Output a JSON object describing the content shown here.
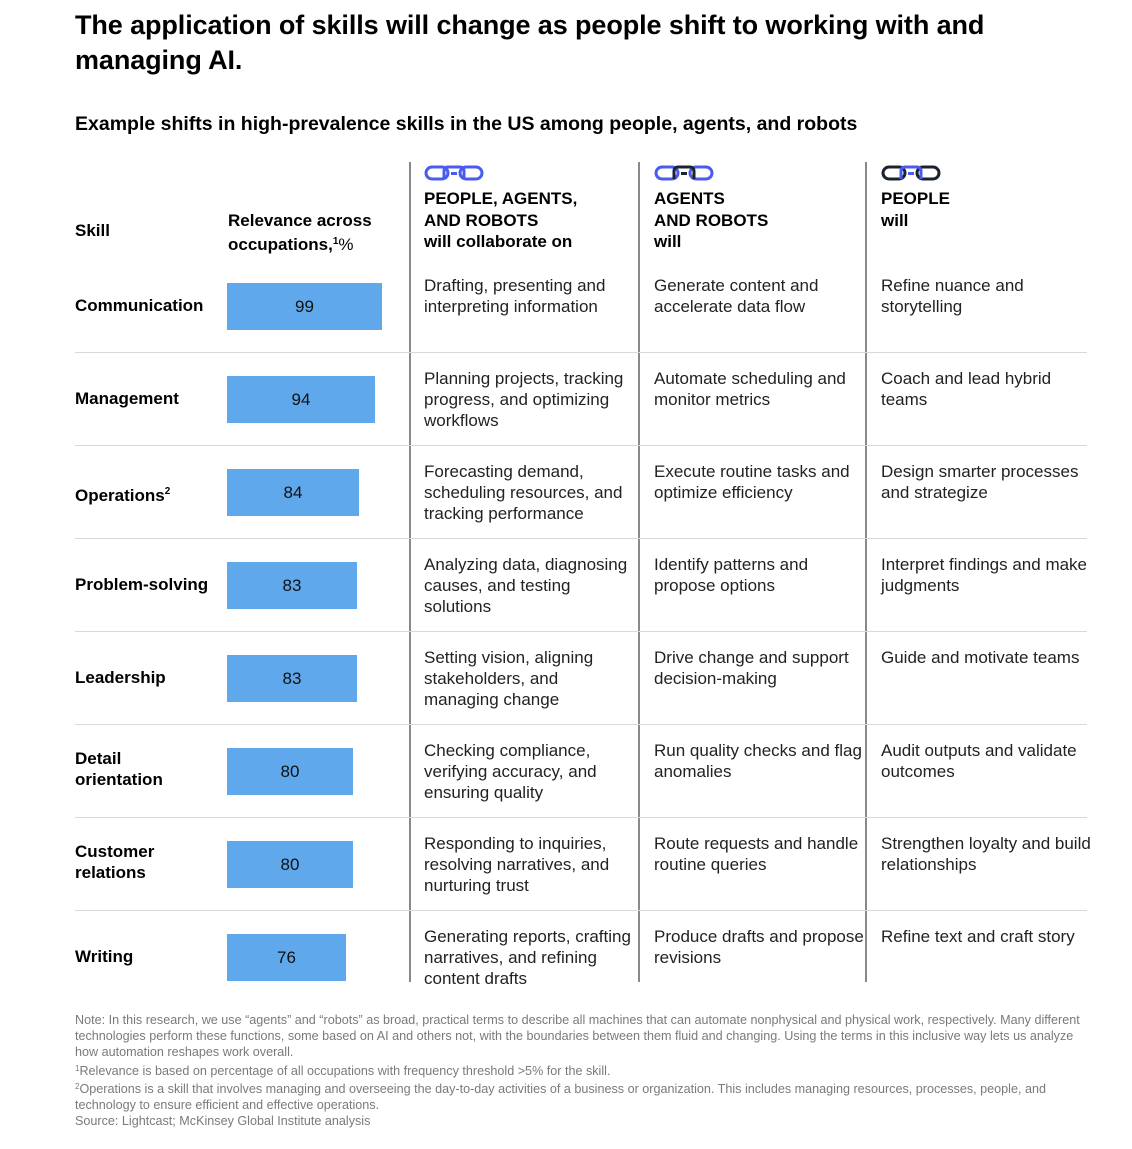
{
  "title": "The application of skills will change as people shift to working with and managing AI.",
  "subtitle": "Example shifts in high-prevalence skills in the US among people, agents, and robots",
  "headers": {
    "skill": "Skill",
    "relevance_line1": "Relevance across",
    "relevance_line2": "occupations,",
    "relevance_footnote": "1",
    "relevance_unit": "%",
    "columns": [
      {
        "icon": "chain-link-icon-all-blue",
        "caps_line1": "PEOPLE, AGENTS,",
        "caps_line2": "AND ROBOTS",
        "sub": "will collaborate on"
      },
      {
        "icon": "chain-link-icon-blue-dark-middle",
        "caps_line1": "AGENTS",
        "caps_line2": "AND ROBOTS",
        "sub": "will"
      },
      {
        "icon": "chain-link-icon-dark-blue-middle",
        "caps_line1": "PEOPLE",
        "caps_line2": "will",
        "sub": ""
      }
    ]
  },
  "colors": {
    "bar": "#5fa8ec",
    "icon_blue": "#4a5cf0",
    "icon_dark": "#1b2330"
  },
  "chart_data": {
    "type": "bar",
    "title": "Example shifts in high-prevalence skills in the US among people, agents, and robots",
    "xlabel": "Relevance across occupations, %",
    "ylabel": "Skill",
    "categories": [
      "Communication",
      "Management",
      "Operations",
      "Problem-solving",
      "Leadership",
      "Detail orientation",
      "Customer relations",
      "Writing"
    ],
    "values": [
      99,
      94,
      84,
      83,
      83,
      80,
      80,
      76
    ],
    "xlim": [
      0,
      100
    ],
    "orientation": "horizontal",
    "data_labels": true,
    "grid": false
  },
  "rows": [
    {
      "skill_line1": "Communication",
      "skill_line2": "",
      "footnote": "",
      "value": 99,
      "collab": "Drafting, presenting and interpreting information",
      "agents": "Generate content and accelerate data flow",
      "people": "Refine nuance and storytelling"
    },
    {
      "skill_line1": "Management",
      "skill_line2": "",
      "footnote": "",
      "value": 94,
      "collab": "Planning projects, tracking progress, and optimizing workflows",
      "agents": "Automate scheduling and monitor metrics",
      "people": "Coach and lead hybrid teams"
    },
    {
      "skill_line1": "Operations",
      "skill_line2": "",
      "footnote": "2",
      "value": 84,
      "collab": "Forecasting demand, scheduling resources, and tracking performance",
      "agents": "Execute routine tasks and optimize efficiency",
      "people": "Design smarter processes and strategize"
    },
    {
      "skill_line1": "Problem-solving",
      "skill_line2": "",
      "footnote": "",
      "value": 83,
      "collab": "Analyzing data, diagnosing causes, and testing solutions",
      "agents": "Identify patterns and propose options",
      "people": "Interpret findings and make judgments"
    },
    {
      "skill_line1": "Leadership",
      "skill_line2": "",
      "footnote": "",
      "value": 83,
      "collab": "Setting vision, aligning stakeholders, and managing change",
      "agents": "Drive change and support decision-making",
      "people": "Guide and motivate teams"
    },
    {
      "skill_line1": "Detail",
      "skill_line2": "orientation",
      "footnote": "",
      "value": 80,
      "collab": "Checking compliance, verifying accuracy, and ensuring quality",
      "agents": "Run quality checks and flag anomalies",
      "people": "Audit outputs and validate outcomes"
    },
    {
      "skill_line1": "Customer",
      "skill_line2": "relations",
      "footnote": "",
      "value": 80,
      "collab": "Responding to inquiries, resolving narratives, and nurturing trust",
      "agents": "Route requests and handle routine queries",
      "people": "Strengthen loyalty and build relationships"
    },
    {
      "skill_line1": "Writing",
      "skill_line2": "",
      "footnote": "",
      "value": 76,
      "collab": "Generating reports, crafting narratives, and refining content drafts",
      "agents": "Produce drafts and propose revisions",
      "people": "Refine text and craft story"
    }
  ],
  "notes": {
    "note": "Note: In this research, we use “agents” and “robots” as broad, practical terms to describe all machines that can automate nonphysical and physical work, respectively. Many different technologies perform these functions, some based on AI and others not, with the boundaries between them fluid and changing. Using the terms in this inclusive way lets us analyze how automation reshapes work overall.",
    "footnote1_mark": "1",
    "footnote1": "Relevance is based on percentage of all occupations with frequency threshold >5% for the skill.",
    "footnote2_mark": "2",
    "footnote2": "Operations is a skill that involves managing and overseeing the day-to-day activities of a business or organization. This includes managing resources, processes, people, and technology to ensure efficient and effective operations.",
    "source": "Source: Lightcast; McKinsey Global Institute analysis"
  }
}
